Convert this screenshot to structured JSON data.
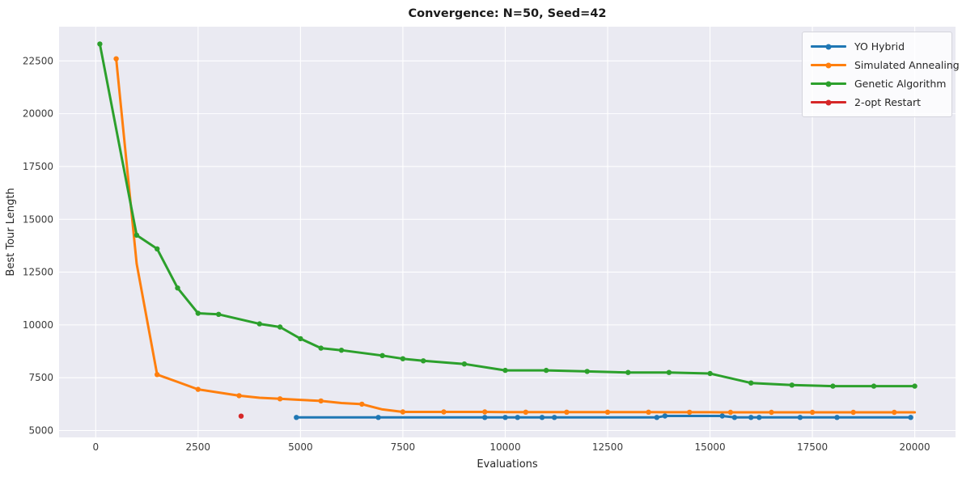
{
  "title": "Convergence: N=50, Seed=42",
  "chart_data": {
    "type": "line",
    "title": "Convergence: N=50, Seed=42",
    "xlabel": "Evaluations",
    "ylabel": "Best Tour Length",
    "xlim": [
      -895,
      20995
    ],
    "ylim": [
      4675,
      24120
    ],
    "x_ticks": [
      0,
      2500,
      5000,
      7500,
      10000,
      12500,
      15000,
      17500,
      20000
    ],
    "y_ticks": [
      5000,
      7500,
      10000,
      12500,
      15000,
      17500,
      20000,
      22500
    ],
    "x_tick_labels": [
      "0",
      "2500",
      "5000",
      "7500",
      "10000",
      "12500",
      "15000",
      "17500",
      "20000"
    ],
    "y_tick_labels": [
      "5000",
      "7500",
      "10000",
      "12500",
      "15000",
      "17500",
      "20000",
      "22500"
    ],
    "grid": true,
    "legend_position": "upper right",
    "axes_background": "#eaeaf2",
    "grid_color": "#ffffff",
    "figure_background": "#ffffff",
    "series": [
      {
        "name": "YO Hybrid",
        "color": "#1f77b4",
        "line_width": 3,
        "marker_size": 3.2,
        "marker_every": 1,
        "x": [
          4900,
          6900,
          9500,
          10000,
          10300,
          10900,
          11200,
          13700,
          13900,
          15300,
          15600,
          16000,
          16200,
          17200,
          18100,
          19900
        ],
        "y": [
          5620,
          5620,
          5620,
          5620,
          5620,
          5620,
          5620,
          5620,
          5690,
          5690,
          5620,
          5620,
          5620,
          5620,
          5620,
          5620
        ]
      },
      {
        "name": "Simulated Annealing",
        "color": "#ff7f0e",
        "line_width": 3,
        "marker_size": 3.2,
        "marker_every": 2,
        "x": [
          500,
          1000,
          1500,
          2000,
          2500,
          3000,
          3500,
          4000,
          4500,
          5000,
          5500,
          6000,
          6500,
          7000,
          7500,
          8000,
          8500,
          9000,
          9500,
          10000,
          10500,
          11000,
          11500,
          12000,
          12500,
          13000,
          13500,
          14000,
          14500,
          15000,
          15500,
          16000,
          16500,
          17000,
          17500,
          18000,
          18500,
          19000,
          19500,
          20000
        ],
        "y": [
          22600,
          12900,
          7650,
          7300,
          6950,
          6800,
          6650,
          6550,
          6500,
          6450,
          6400,
          6300,
          6250,
          6000,
          5880,
          5880,
          5880,
          5880,
          5880,
          5870,
          5870,
          5870,
          5870,
          5870,
          5870,
          5870,
          5870,
          5865,
          5865,
          5865,
          5860,
          5860,
          5860,
          5860,
          5860,
          5860,
          5860,
          5860,
          5860,
          5860
        ]
      },
      {
        "name": "Genetic Algorithm",
        "color": "#2ca02c",
        "line_width": 3,
        "marker_size": 3.2,
        "marker_every": 1,
        "x": [
          100,
          1000,
          1500,
          2000,
          2500,
          3000,
          4000,
          4500,
          5000,
          5500,
          6000,
          7000,
          7500,
          8000,
          9000,
          10000,
          11000,
          12000,
          13000,
          14000,
          15000,
          16000,
          17000,
          18000,
          19000,
          20000
        ],
        "y": [
          23300,
          14250,
          13600,
          11750,
          10550,
          10500,
          10050,
          9900,
          9350,
          8900,
          8800,
          8550,
          8400,
          8300,
          8150,
          7850,
          7850,
          7800,
          7750,
          7750,
          7700,
          7250,
          7150,
          7100,
          7100,
          7100
        ]
      },
      {
        "name": "2-opt Restart",
        "color": "#d62728",
        "line_width": 3,
        "marker_size": 3.2,
        "marker_every": 1,
        "x": [
          3550
        ],
        "y": [
          5680
        ]
      }
    ]
  }
}
